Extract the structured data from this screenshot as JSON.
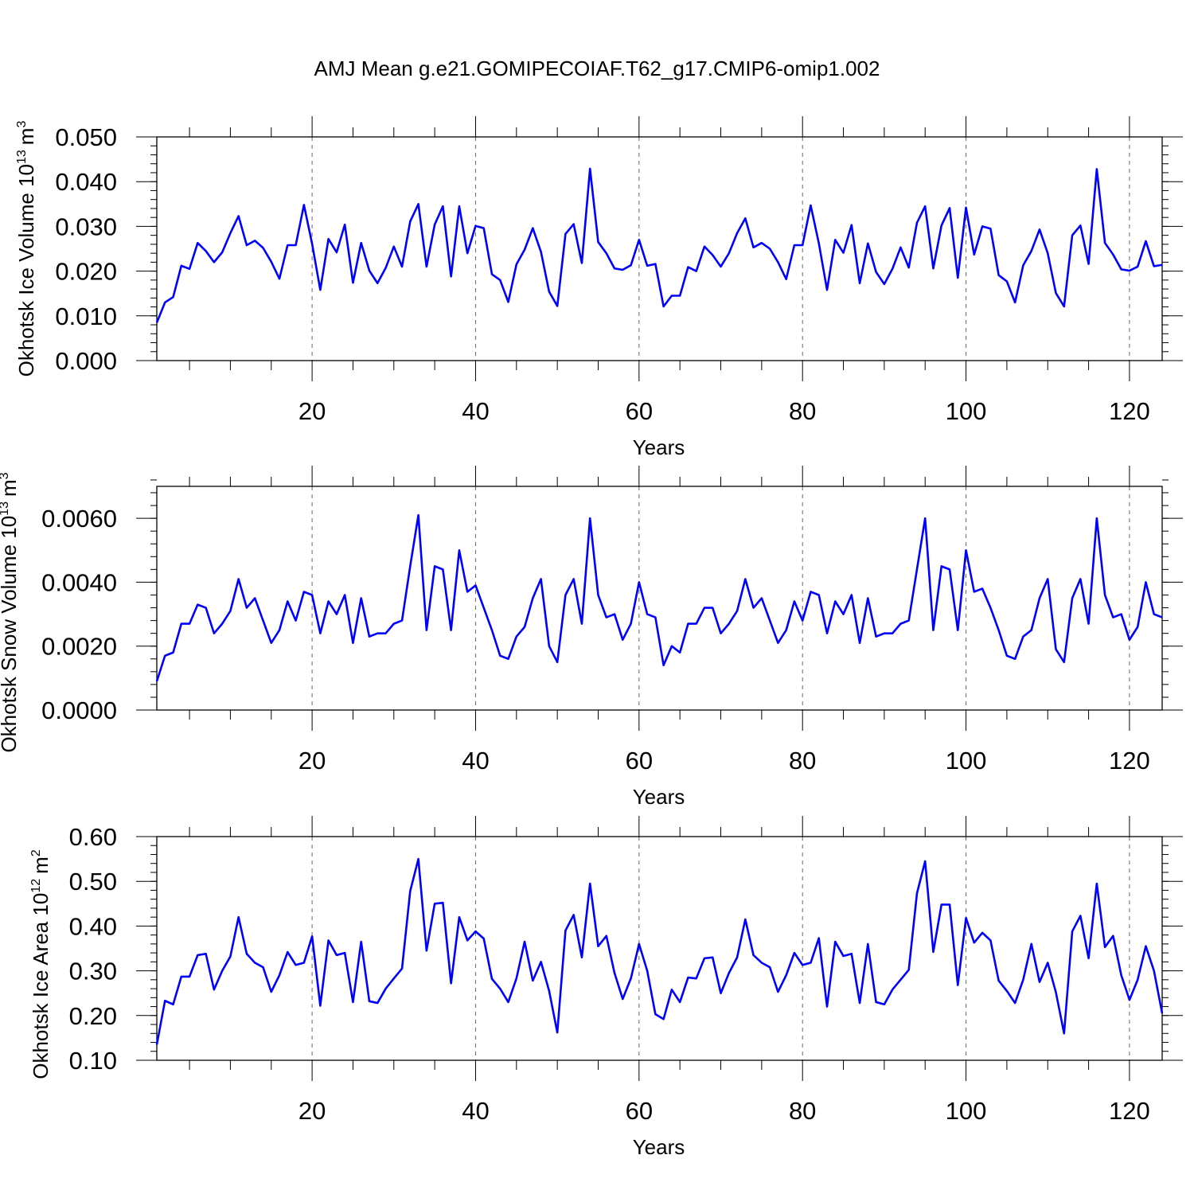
{
  "title": "AMJ Mean g.e21.GOMIPECOIAF.T62_g17.CMIP6-omip1.002",
  "line_color": "#0000ff",
  "chart_data": [
    {
      "type": "line",
      "ylabel_base": "Okhotsk Ice Volume 10",
      "ylabel_exp": "13",
      "ylabel_unit": "m",
      "ylabel_unit_exp": "3",
      "xlabel": "Years",
      "xlim": [
        1,
        124
      ],
      "ylim": [
        0,
        0.05
      ],
      "x_ticks": [
        20,
        40,
        60,
        80,
        100,
        120
      ],
      "y_ticks": [
        "0.000",
        "0.010",
        "0.020",
        "0.030",
        "0.040",
        "0.050"
      ],
      "y_tick_values": [
        0,
        0.01,
        0.02,
        0.03,
        0.04,
        0.05
      ],
      "y_minor_step": 0.002,
      "grid": "vertical dashed at major x ticks",
      "series": [
        {
          "x_start": 1,
          "values": [
            0.0085,
            0.013,
            0.0142,
            0.0212,
            0.0205,
            0.0263,
            0.0245,
            0.022,
            0.0242,
            0.0285,
            0.0323,
            0.0258,
            0.0268,
            0.0252,
            0.0221,
            0.0183,
            0.0258,
            0.0258,
            0.0348,
            0.0261,
            0.0158,
            0.0272,
            0.0242,
            0.0304,
            0.0174,
            0.0263,
            0.0201,
            0.0173,
            0.0207,
            0.0255,
            0.021,
            0.0311,
            0.035,
            0.021,
            0.0304,
            0.0345,
            0.0188,
            0.0345,
            0.024,
            0.0301,
            0.0296,
            0.0193,
            0.018,
            0.0131,
            0.0215,
            0.0248,
            0.0296,
            0.0243,
            0.0154,
            0.0122,
            0.0283,
            0.0305,
            0.0218,
            0.0429,
            0.0265,
            0.024,
            0.0206,
            0.0203,
            0.0213,
            0.027,
            0.0212,
            0.0216,
            0.0121,
            0.0145,
            0.0145,
            0.0209,
            0.02,
            0.0255,
            0.0236,
            0.021,
            0.024,
            0.0285,
            0.0318,
            0.0253,
            0.0263,
            0.025,
            0.022,
            0.0182,
            0.0258,
            0.0258,
            0.0347,
            0.0262,
            0.0158,
            0.027,
            0.0241,
            0.0303,
            0.0173,
            0.0262,
            0.0198,
            0.0171,
            0.0205,
            0.0253,
            0.0208,
            0.0308,
            0.0345,
            0.0206,
            0.0302,
            0.0341,
            0.0185,
            0.0342,
            0.0237,
            0.03,
            0.0295,
            0.0191,
            0.0177,
            0.013,
            0.0213,
            0.0245,
            0.0293,
            0.024,
            0.0151,
            0.0121,
            0.028,
            0.0302,
            0.0216,
            0.0428,
            0.0263,
            0.0237,
            0.0204,
            0.0201,
            0.021,
            0.0267,
            0.0211,
            0.0214
          ]
        }
      ]
    },
    {
      "type": "line",
      "ylabel_base": "Okhotsk Snow Volume 10",
      "ylabel_exp": "13",
      "ylabel_unit": "m",
      "ylabel_unit_exp": "3",
      "xlabel": "Years",
      "xlim": [
        1,
        124
      ],
      "ylim": [
        0,
        0.007
      ],
      "x_ticks": [
        20,
        40,
        60,
        80,
        100,
        120
      ],
      "y_ticks": [
        "0.0000",
        "0.0020",
        "0.0040",
        "0.0060"
      ],
      "y_tick_values": [
        0,
        0.002,
        0.004,
        0.006
      ],
      "y_minor_step": 0.0004,
      "grid": "vertical dashed at major x ticks",
      "series": [
        {
          "x_start": 1,
          "values": [
            0.0009,
            0.0017,
            0.0018,
            0.0027,
            0.0027,
            0.0033,
            0.0032,
            0.0024,
            0.0027,
            0.0031,
            0.0041,
            0.0032,
            0.0035,
            0.0028,
            0.0021,
            0.0025,
            0.0034,
            0.0028,
            0.0037,
            0.0036,
            0.0024,
            0.0034,
            0.003,
            0.0036,
            0.0021,
            0.0035,
            0.0023,
            0.0024,
            0.0024,
            0.0027,
            0.0028,
            0.0045,
            0.0061,
            0.0025,
            0.0045,
            0.0044,
            0.0025,
            0.005,
            0.0037,
            0.0039,
            0.0032,
            0.0025,
            0.0017,
            0.0016,
            0.0023,
            0.0026,
            0.0035,
            0.0041,
            0.002,
            0.0015,
            0.0036,
            0.0041,
            0.0027,
            0.006,
            0.0036,
            0.0029,
            0.003,
            0.0022,
            0.0027,
            0.004,
            0.003,
            0.0029,
            0.0014,
            0.002,
            0.0018,
            0.0027,
            0.0027,
            0.0032,
            0.0032,
            0.0024,
            0.0027,
            0.0031,
            0.0041,
            0.0032,
            0.0035,
            0.0028,
            0.0021,
            0.0025,
            0.0034,
            0.0028,
            0.0037,
            0.0036,
            0.0024,
            0.0034,
            0.003,
            0.0036,
            0.0021,
            0.0035,
            0.0023,
            0.0024,
            0.0024,
            0.0027,
            0.0028,
            0.0044,
            0.006,
            0.0025,
            0.0045,
            0.0044,
            0.0025,
            0.005,
            0.0037,
            0.0038,
            0.0032,
            0.0025,
            0.0017,
            0.0016,
            0.0023,
            0.0025,
            0.0035,
            0.0041,
            0.0019,
            0.0015,
            0.0035,
            0.0041,
            0.0027,
            0.006,
            0.0036,
            0.0029,
            0.003,
            0.0022,
            0.0026,
            0.004,
            0.003,
            0.0029
          ]
        }
      ]
    },
    {
      "type": "line",
      "ylabel_base": "Okhotsk Ice Area 10",
      "ylabel_exp": "12",
      "ylabel_unit": "m",
      "ylabel_unit_exp": "2",
      "xlabel": "Years",
      "xlim": [
        1,
        124
      ],
      "ylim": [
        0.1,
        0.6
      ],
      "x_ticks": [
        20,
        40,
        60,
        80,
        100,
        120
      ],
      "y_ticks": [
        "0.10",
        "0.20",
        "0.30",
        "0.40",
        "0.50",
        "0.60"
      ],
      "y_tick_values": [
        0.1,
        0.2,
        0.3,
        0.4,
        0.5,
        0.6
      ],
      "y_minor_step": 0.02,
      "grid": "vertical dashed at major x ticks",
      "series": [
        {
          "x_start": 1,
          "values": [
            0.135,
            0.233,
            0.225,
            0.287,
            0.287,
            0.335,
            0.338,
            0.258,
            0.3,
            0.332,
            0.42,
            0.338,
            0.318,
            0.308,
            0.253,
            0.29,
            0.342,
            0.313,
            0.318,
            0.377,
            0.222,
            0.368,
            0.335,
            0.34,
            0.23,
            0.365,
            0.232,
            0.228,
            0.26,
            0.283,
            0.305,
            0.478,
            0.55,
            0.345,
            0.45,
            0.452,
            0.272,
            0.42,
            0.368,
            0.388,
            0.372,
            0.282,
            0.26,
            0.23,
            0.283,
            0.365,
            0.278,
            0.32,
            0.255,
            0.162,
            0.39,
            0.425,
            0.33,
            0.495,
            0.355,
            0.378,
            0.295,
            0.237,
            0.283,
            0.36,
            0.3,
            0.203,
            0.192,
            0.258,
            0.23,
            0.285,
            0.283,
            0.328,
            0.33,
            0.25,
            0.295,
            0.33,
            0.415,
            0.335,
            0.318,
            0.308,
            0.253,
            0.29,
            0.34,
            0.313,
            0.318,
            0.373,
            0.22,
            0.365,
            0.333,
            0.338,
            0.228,
            0.36,
            0.23,
            0.225,
            0.258,
            0.28,
            0.302,
            0.473,
            0.545,
            0.342,
            0.448,
            0.448,
            0.268,
            0.418,
            0.363,
            0.385,
            0.368,
            0.278,
            0.255,
            0.228,
            0.28,
            0.36,
            0.275,
            0.318,
            0.252,
            0.16,
            0.388,
            0.423,
            0.328,
            0.495,
            0.353,
            0.378,
            0.29,
            0.235,
            0.28,
            0.355,
            0.3,
            0.205
          ]
        }
      ]
    }
  ]
}
